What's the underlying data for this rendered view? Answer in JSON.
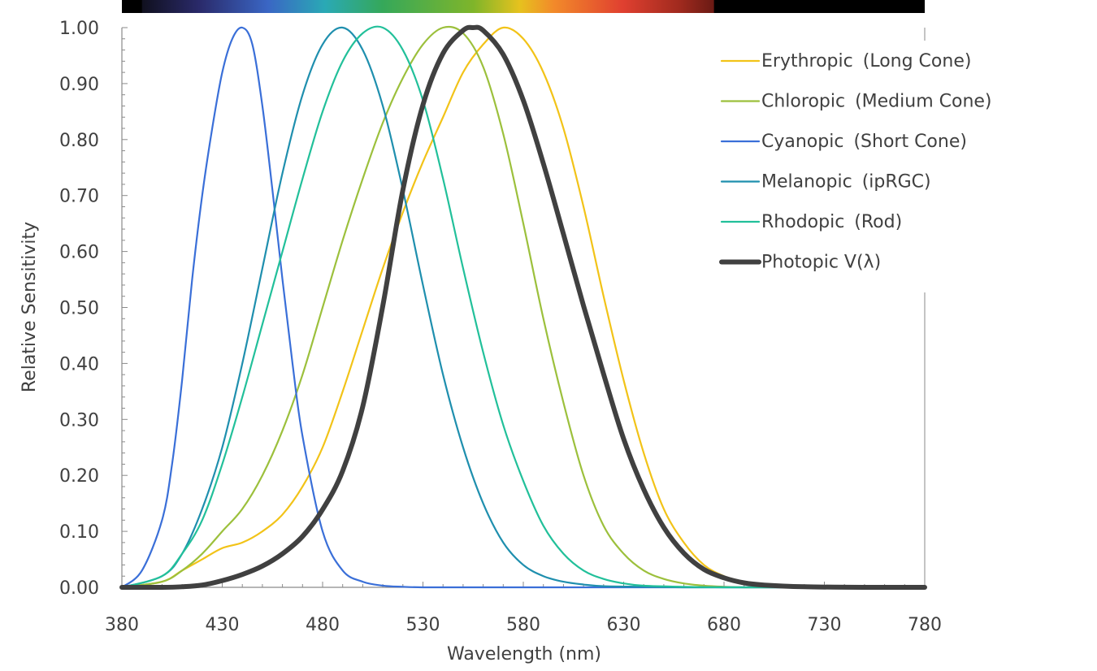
{
  "chart_data": {
    "type": "line",
    "title": "",
    "xlabel": "Wavelength (nm)",
    "ylabel": "Relative Sensitivity",
    "xlim": [
      380,
      780
    ],
    "ylim": [
      0,
      1
    ],
    "xticks": [
      380,
      430,
      480,
      530,
      580,
      630,
      680,
      730,
      780
    ],
    "xtick_labels": [
      "380",
      "430",
      "480",
      "530",
      "580",
      "630",
      "680",
      "730",
      "780"
    ],
    "yticks": [
      0,
      0.1,
      0.2,
      0.3,
      0.4,
      0.5,
      0.6,
      0.7,
      0.8,
      0.9,
      1.0
    ],
    "ytick_labels": [
      "0.00",
      "0.10",
      "0.20",
      "0.30",
      "0.40",
      "0.50",
      "0.60",
      "0.70",
      "0.80",
      "0.90",
      "1.00"
    ],
    "grid": false,
    "legend_position": "top-right",
    "spectrum_bar": {
      "x_range": [
        380,
        780
      ],
      "visible_range": [
        390,
        675
      ]
    },
    "series": [
      {
        "name": "Erythropic",
        "legend_detail": "(Long Cone)",
        "color": "#f2c318",
        "stroke": "thin",
        "x": [
          380,
          400,
          410,
          420,
          430,
          440,
          450,
          460,
          470,
          480,
          490,
          500,
          510,
          520,
          530,
          540,
          550,
          560,
          570,
          580,
          590,
          600,
          610,
          620,
          630,
          640,
          650,
          660,
          670,
          680,
          690,
          700,
          720,
          750,
          780
        ],
        "y": [
          0.0,
          0.01,
          0.03,
          0.05,
          0.07,
          0.08,
          0.1,
          0.13,
          0.18,
          0.25,
          0.35,
          0.46,
          0.57,
          0.67,
          0.76,
          0.84,
          0.92,
          0.97,
          1.0,
          0.98,
          0.92,
          0.82,
          0.68,
          0.52,
          0.37,
          0.24,
          0.14,
          0.08,
          0.04,
          0.02,
          0.01,
          0.005,
          0.001,
          0.0,
          0.0
        ]
      },
      {
        "name": "Chloropic",
        "legend_detail": "(Medium Cone)",
        "color": "#9cc03c",
        "stroke": "thin",
        "x": [
          380,
          400,
          410,
          420,
          430,
          440,
          450,
          460,
          470,
          480,
          490,
          500,
          510,
          520,
          530,
          540,
          550,
          560,
          570,
          580,
          590,
          600,
          610,
          620,
          630,
          640,
          650,
          660,
          670,
          680,
          690,
          700,
          720,
          750,
          780
        ],
        "y": [
          0.0,
          0.01,
          0.03,
          0.06,
          0.1,
          0.14,
          0.2,
          0.28,
          0.38,
          0.5,
          0.62,
          0.73,
          0.83,
          0.91,
          0.97,
          1.0,
          0.99,
          0.93,
          0.81,
          0.65,
          0.48,
          0.33,
          0.2,
          0.11,
          0.06,
          0.03,
          0.015,
          0.007,
          0.003,
          0.001,
          0.0,
          0.0,
          0.0,
          0.0,
          0.0
        ]
      },
      {
        "name": "Cyanopic",
        "legend_detail": "(Short Cone)",
        "color": "#3a6fd8",
        "stroke": "thin",
        "x": [
          380,
          390,
          400,
          405,
          410,
          415,
          420,
          425,
          430,
          435,
          440,
          445,
          450,
          455,
          460,
          465,
          470,
          480,
          490,
          500,
          510,
          520,
          530,
          550,
          580,
          780
        ],
        "y": [
          0.0,
          0.03,
          0.12,
          0.22,
          0.37,
          0.55,
          0.7,
          0.82,
          0.92,
          0.98,
          1.0,
          0.97,
          0.86,
          0.71,
          0.55,
          0.4,
          0.27,
          0.1,
          0.03,
          0.01,
          0.003,
          0.001,
          0.0,
          0.0,
          0.0,
          0.0
        ]
      },
      {
        "name": "Melanopic",
        "legend_detail": "(ipRGC)",
        "color": "#1f8fae",
        "stroke": "thin",
        "x": [
          380,
          400,
          410,
          420,
          430,
          440,
          450,
          460,
          470,
          480,
          490,
          500,
          510,
          520,
          530,
          540,
          550,
          560,
          570,
          580,
          590,
          600,
          610,
          620,
          640,
          660,
          680,
          700,
          780
        ],
        "y": [
          0.0,
          0.02,
          0.06,
          0.14,
          0.25,
          0.4,
          0.57,
          0.74,
          0.88,
          0.97,
          1.0,
          0.96,
          0.86,
          0.71,
          0.54,
          0.38,
          0.25,
          0.15,
          0.08,
          0.04,
          0.02,
          0.01,
          0.005,
          0.002,
          0.001,
          0.0,
          0.0,
          0.0,
          0.0
        ]
      },
      {
        "name": "Rhodopic",
        "legend_detail": "(Rod)",
        "color": "#22c09a",
        "stroke": "thin",
        "x": [
          380,
          400,
          410,
          420,
          430,
          440,
          450,
          460,
          470,
          480,
          490,
          500,
          510,
          520,
          530,
          540,
          550,
          560,
          570,
          580,
          590,
          600,
          610,
          620,
          630,
          640,
          660,
          680,
          700,
          780
        ],
        "y": [
          0.0,
          0.02,
          0.06,
          0.12,
          0.22,
          0.34,
          0.47,
          0.6,
          0.73,
          0.85,
          0.94,
          0.99,
          1.0,
          0.96,
          0.87,
          0.73,
          0.57,
          0.42,
          0.29,
          0.19,
          0.11,
          0.06,
          0.03,
          0.015,
          0.007,
          0.003,
          0.001,
          0.0,
          0.0,
          0.0
        ]
      },
      {
        "name": "Photopic V(λ)",
        "legend_detail": "",
        "color": "#404040",
        "stroke": "thick",
        "x": [
          380,
          400,
          410,
          420,
          430,
          440,
          450,
          460,
          470,
          480,
          490,
          500,
          510,
          520,
          530,
          540,
          550,
          555,
          560,
          570,
          580,
          590,
          600,
          610,
          620,
          630,
          640,
          650,
          660,
          670,
          680,
          690,
          700,
          720,
          750,
          780
        ],
        "y": [
          0.0,
          0.0,
          0.001,
          0.004,
          0.012,
          0.023,
          0.038,
          0.06,
          0.091,
          0.139,
          0.208,
          0.323,
          0.503,
          0.71,
          0.862,
          0.954,
          0.995,
          1.0,
          0.995,
          0.952,
          0.87,
          0.757,
          0.631,
          0.503,
          0.381,
          0.265,
          0.175,
          0.107,
          0.061,
          0.032,
          0.017,
          0.008,
          0.004,
          0.001,
          0.0,
          0.0
        ]
      }
    ]
  }
}
